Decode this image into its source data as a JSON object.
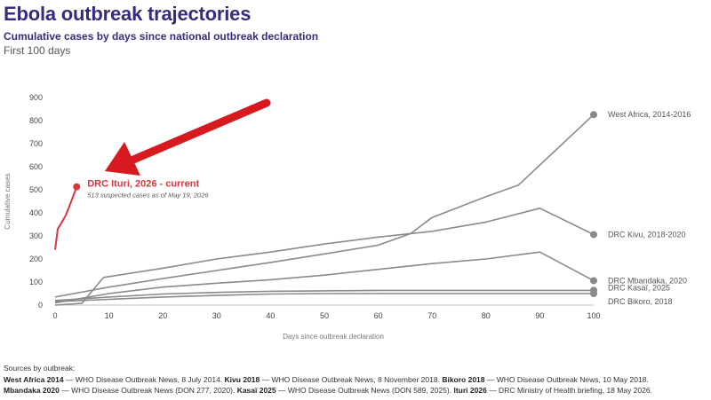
{
  "header": {
    "title": "Ebola outbreak trajectories",
    "subtitle": "Cumulative cases by days since national outbreak declaration",
    "note": "First 100 days"
  },
  "chart_data": {
    "type": "line",
    "xlabel": "Days since outbreak declaration",
    "ylabel": "Cumulative cases",
    "xlim": [
      0,
      100
    ],
    "ylim": [
      0,
      900
    ],
    "x_ticks": [
      0,
      10,
      20,
      30,
      40,
      50,
      60,
      70,
      80,
      90,
      100
    ],
    "y_ticks": [
      0,
      100,
      200,
      300,
      400,
      500,
      600,
      700,
      800,
      900
    ],
    "grid": false,
    "legend": "direct labels at line ends",
    "series": [
      {
        "name": "West Africa, 2014-2016",
        "color": "#8a8a8a",
        "x": [
          0,
          10,
          20,
          30,
          40,
          50,
          60,
          66,
          70,
          80,
          86,
          100
        ],
        "y": [
          35,
          78,
          115,
          150,
          185,
          222,
          260,
          310,
          380,
          470,
          520,
          826
        ]
      },
      {
        "name": "DRC Kivu, 2018-2020",
        "color": "#8a8a8a",
        "x": [
          0,
          5,
          9,
          20,
          30,
          40,
          50,
          60,
          70,
          80,
          90,
          100
        ],
        "y": [
          0,
          8,
          120,
          160,
          200,
          230,
          265,
          295,
          320,
          360,
          420,
          306
        ]
      },
      {
        "name": "DRC Mbandaka, 2020",
        "color": "#8a8a8a",
        "x": [
          0,
          10,
          20,
          30,
          40,
          50,
          60,
          70,
          80,
          90,
          100
        ],
        "y": [
          10,
          50,
          78,
          95,
          110,
          130,
          155,
          180,
          200,
          230,
          106
        ]
      },
      {
        "name": "DRC Kasaï, 2025",
        "color": "#8a8a8a",
        "x": [
          0,
          10,
          20,
          30,
          40,
          50,
          60,
          70,
          80,
          90,
          100
        ],
        "y": [
          20,
          35,
          48,
          55,
          60,
          62,
          64,
          64,
          64,
          64,
          64
        ]
      },
      {
        "name": "DRC Bikoro, 2018",
        "color": "#8a8a8a",
        "x": [
          0,
          10,
          20,
          30,
          40,
          50,
          60,
          70,
          80,
          90,
          100
        ],
        "y": [
          15,
          25,
          35,
          42,
          48,
          50,
          50,
          50,
          50,
          50,
          50
        ]
      },
      {
        "name": "DRC Ituri, 2026 - current",
        "color": "#d9363e",
        "x": [
          0,
          0.5,
          1,
          2,
          3,
          4
        ],
        "y": [
          240,
          330,
          350,
          390,
          450,
          513
        ]
      }
    ],
    "annotation": {
      "label": "DRC Ituri, 2026 - current",
      "text": "513 suspected cases as of May 19, 2026",
      "x": 4,
      "y": 513
    },
    "colors": {
      "highlight": "#d9363e",
      "context": "#8a8a8a",
      "arrow": "#d71920",
      "title": "#3a2a7a"
    }
  },
  "sources": {
    "label": "Sources by outbreak:",
    "items": [
      {
        "name": "West Africa 2014",
        "text": "— WHO Disease Outbreak News, 8 July 2014."
      },
      {
        "name": "Kivu 2018",
        "text": "— WHO Disease Outbreak News, 8 November 2018."
      },
      {
        "name": "Bikoro 2018",
        "text": "— WHO Disease Outbreak News, 10 May 2018."
      },
      {
        "name": "Mbandaka 2020",
        "text": "— WHO Disease Outbreak News (DON 277, 2020)."
      },
      {
        "name": "Kasaï 2025",
        "text": "— WHO Disease Outbreak News (DON 589, 2025)."
      },
      {
        "name": "Ituri 2026",
        "text": "— DRC Ministry of Health briefing, 18 May 2026."
      }
    ]
  }
}
